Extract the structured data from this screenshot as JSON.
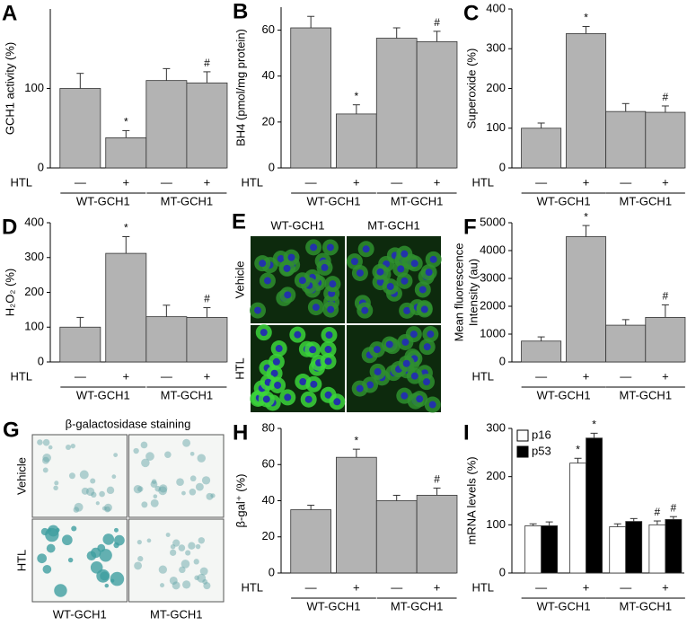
{
  "chart_data": [
    {
      "panel": "A",
      "type": "bar",
      "ylabel": "GCH1 activity (%)",
      "category_title": "HTL",
      "categories": [
        "—",
        "+",
        "—",
        "+"
      ],
      "groups": [
        "WT-GCH1",
        "MT-GCH1"
      ],
      "color": "#b3b3b3",
      "values": [
        100,
        38,
        110,
        107
      ],
      "errors": [
        19,
        9,
        15,
        14
      ],
      "annotations": [
        null,
        "*",
        null,
        "#"
      ],
      "ylim": [
        0,
        200
      ],
      "yticks": [
        0,
        100
      ]
    },
    {
      "panel": "B",
      "type": "bar",
      "ylabel": "BH4 (pmol/mg protein)",
      "category_title": "HTL",
      "categories": [
        "—",
        "+",
        "—",
        "+"
      ],
      "groups": [
        "WT-GCH1",
        "MT-GCH1"
      ],
      "color": "#b3b3b3",
      "values": [
        61,
        23.5,
        56.5,
        55
      ],
      "errors": [
        5,
        4,
        4.5,
        4.5
      ],
      "annotations": [
        null,
        "*",
        null,
        "#"
      ],
      "ylim": [
        0,
        70
      ],
      "yticks": [
        0,
        20,
        40,
        60
      ]
    },
    {
      "panel": "C",
      "type": "bar",
      "ylabel": "Superoxide (%)",
      "category_title": "HTL",
      "categories": [
        "—",
        "+",
        "—",
        "+"
      ],
      "groups": [
        "WT-GCH1",
        "MT-GCH1"
      ],
      "color": "#b3b3b3",
      "values": [
        100,
        338,
        142,
        140
      ],
      "errors": [
        13,
        18,
        20,
        16
      ],
      "annotations": [
        null,
        "*",
        null,
        "#"
      ],
      "ylim": [
        0,
        400
      ],
      "yticks": [
        0,
        100,
        200,
        300,
        400
      ]
    },
    {
      "panel": "D",
      "type": "bar",
      "ylabel": "H₂O₂ (%)",
      "category_title": "HTL",
      "categories": [
        "—",
        "+",
        "—",
        "+"
      ],
      "groups": [
        "WT-GCH1",
        "MT-GCH1"
      ],
      "color": "#b3b3b3",
      "values": [
        100,
        312,
        130,
        128
      ],
      "errors": [
        28,
        48,
        33,
        28
      ],
      "annotations": [
        null,
        "*",
        null,
        "#"
      ],
      "ylim": [
        0,
        400
      ],
      "yticks": [
        0,
        100,
        200,
        300,
        400
      ]
    },
    {
      "panel": "E",
      "type": "image",
      "columns": [
        "WT-GCH1",
        "MT-GCH1"
      ],
      "rows": [
        "Vehicle",
        "HTL"
      ]
    },
    {
      "panel": "F",
      "type": "bar",
      "ylabel": [
        "Mean fluorescence",
        "Intensity (au)"
      ],
      "category_title": "HTL",
      "categories": [
        "—",
        "+",
        "—",
        "+"
      ],
      "groups": [
        "WT-GCH1",
        "MT-GCH1"
      ],
      "color": "#b3b3b3",
      "values": [
        750,
        4500,
        1320,
        1600
      ],
      "errors": [
        150,
        400,
        200,
        450
      ],
      "annotations": [
        null,
        "*",
        null,
        "#"
      ],
      "ylim": [
        0,
        5000
      ],
      "yticks": [
        0,
        1000,
        2000,
        3000,
        4000,
        5000
      ]
    },
    {
      "panel": "G",
      "type": "image",
      "title": "β-galactosidase staining",
      "columns": [
        "WT-GCH1",
        "MT-GCH1"
      ],
      "rows": [
        "Vehicle",
        "HTL"
      ]
    },
    {
      "panel": "H",
      "type": "bar",
      "ylabel": "β-gal⁺ (%)",
      "category_title": "HTL",
      "categories": [
        "—",
        "+",
        "—",
        "+"
      ],
      "groups": [
        "WT-GCH1",
        "MT-GCH1"
      ],
      "color": "#b3b3b3",
      "values": [
        35,
        64,
        40,
        43
      ],
      "errors": [
        2.5,
        4.5,
        3,
        4
      ],
      "annotations": [
        null,
        "*",
        null,
        "#"
      ],
      "ylim": [
        0,
        80
      ],
      "yticks": [
        0,
        20,
        40,
        60,
        80
      ]
    },
    {
      "panel": "I",
      "type": "grouped_bar",
      "ylabel": "mRNA levels (%)",
      "category_title": "HTL",
      "categories": [
        "—",
        "+",
        "—",
        "+"
      ],
      "groups": [
        "WT-GCH1",
        "MT-GCH1"
      ],
      "series": [
        {
          "name": "p16",
          "color": "#ffffff",
          "values": [
            98,
            228,
            96,
            100
          ],
          "errors": [
            4,
            10,
            6,
            8
          ],
          "annotations": [
            null,
            "*",
            null,
            "#"
          ]
        },
        {
          "name": "p53",
          "color": "#000000",
          "values": [
            98,
            280,
            107,
            111
          ],
          "errors": [
            8,
            10,
            6,
            6
          ],
          "annotations": [
            null,
            "*",
            null,
            "#"
          ]
        }
      ],
      "ylim": [
        0,
        300
      ],
      "yticks": [
        0,
        100,
        200,
        300
      ]
    }
  ]
}
